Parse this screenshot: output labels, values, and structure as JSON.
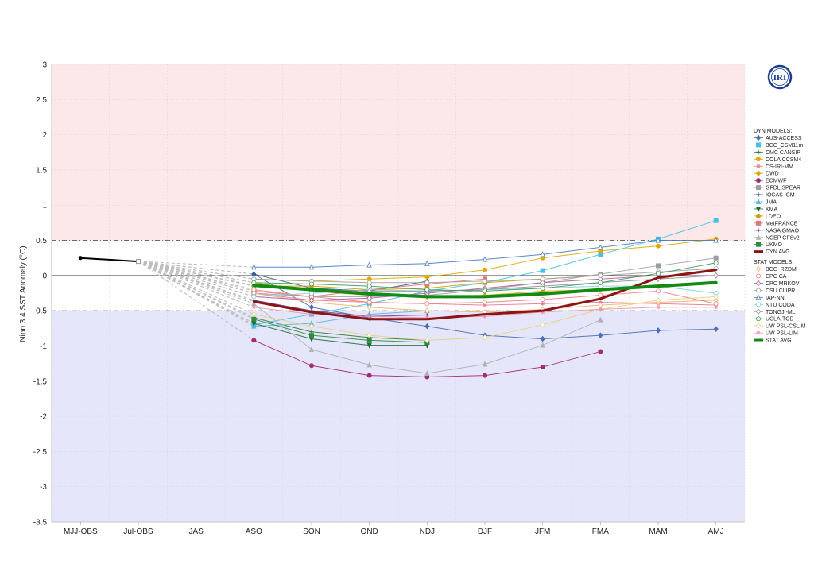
{
  "chart_data": {
    "type": "line",
    "title": "",
    "ylabel": "Nino 3.4 SST Anomaly (°C)",
    "xlabel": "",
    "categories": [
      "MJJ-OBS",
      "Jul-OBS",
      "JAS",
      "ASO",
      "SON",
      "OND",
      "NDJ",
      "DJF",
      "JFM",
      "FMA",
      "MAM",
      "AMJ"
    ],
    "ylim": [
      -3.5,
      3
    ],
    "yticks": [
      3,
      2.5,
      2,
      1.5,
      1,
      0.5,
      0,
      -0.5,
      -1,
      -1.5,
      -2,
      -2.5,
      -3,
      -3.5
    ],
    "ytick_labels": [
      "3",
      "2.5",
      "2",
      "1.5",
      "1",
      "0.5",
      "0",
      "-0.5",
      "-1",
      "-1.5",
      "-2",
      "-2.5",
      "-3",
      "-3.5"
    ],
    "grid": true,
    "bands": [
      {
        "from": 0.5,
        "to": 3,
        "color": "#fde8e9"
      },
      {
        "from": -3.5,
        "to": -0.5,
        "color": "#e6e6fb"
      }
    ],
    "threshold_lines": [
      0.5,
      -0.5
    ],
    "observed": {
      "x_index": [
        0,
        1
      ],
      "values": [
        0.25,
        0.2
      ],
      "color": "#000000"
    },
    "legend_position": "right",
    "dyn_header": "DYN MODELS:",
    "stat_header": "STAT MODELS:",
    "series": [
      {
        "name": "AUS-ACCESS",
        "group": "dyn",
        "color": "#4a6fb5",
        "marker": "diamond",
        "values": [
          null,
          null,
          null,
          0.02,
          -0.45,
          -0.6,
          -0.72,
          -0.85,
          -0.9,
          -0.85,
          -0.78,
          -0.76
        ]
      },
      {
        "name": "BCC_CSM11m",
        "group": "dyn",
        "color": "#46c1e6",
        "marker": "square",
        "values": [
          null,
          null,
          null,
          -0.7,
          -0.55,
          -0.4,
          -0.22,
          -0.1,
          0.07,
          0.3,
          0.52,
          0.78
        ]
      },
      {
        "name": "CMC CANSIP",
        "group": "dyn",
        "color": "#2e7d32",
        "marker": "plus",
        "values": [
          null,
          null,
          null,
          -0.6,
          -0.8,
          -0.88,
          -0.92,
          null,
          null,
          null,
          null,
          null
        ]
      },
      {
        "name": "COLA CCSM4",
        "group": "dyn",
        "color": "#e0a800",
        "marker": "circle",
        "values": [
          null,
          null,
          null,
          -0.05,
          -0.08,
          -0.05,
          -0.02,
          0.08,
          0.25,
          0.35,
          0.42,
          0.52
        ]
      },
      {
        "name": "CS-IRI-MM",
        "group": "dyn",
        "color": "#e8789a",
        "marker": "star",
        "values": [
          null,
          null,
          null,
          -0.25,
          -0.35,
          -0.38,
          -0.4,
          -0.42,
          -0.4,
          -0.38,
          -0.4,
          -0.42
        ]
      },
      {
        "name": "DWD",
        "group": "dyn",
        "color": "#d9a400",
        "marker": "diamond",
        "values": [
          null,
          null,
          null,
          -0.1,
          -0.22,
          -0.28,
          -0.3,
          -0.28,
          -0.22,
          -0.2,
          null,
          null
        ]
      },
      {
        "name": "ECMWF",
        "group": "dyn",
        "color": "#a32a74",
        "marker": "circle",
        "values": [
          null,
          null,
          null,
          -0.92,
          -1.28,
          -1.42,
          -1.44,
          -1.42,
          -1.3,
          -1.08,
          null,
          null
        ]
      },
      {
        "name": "GFDL SPEAR",
        "group": "dyn",
        "color": "#9e9e9e",
        "marker": "square",
        "values": [
          null,
          null,
          null,
          -0.25,
          -0.3,
          -0.3,
          -0.28,
          -0.2,
          -0.1,
          0.02,
          0.14,
          0.25
        ]
      },
      {
        "name": "IOCAS ICM",
        "group": "dyn",
        "color": "#2a5c8a",
        "marker": "plus",
        "values": [
          null,
          null,
          null,
          0.02,
          -0.18,
          -0.22,
          -0.08,
          null,
          null,
          null,
          null,
          null
        ]
      },
      {
        "name": "JMA",
        "group": "dyn",
        "color": "#5ab7d8",
        "marker": "triangle",
        "values": [
          null,
          null,
          null,
          -0.72,
          -0.68,
          -0.55,
          -0.5,
          null,
          null,
          null,
          null,
          null
        ]
      },
      {
        "name": "KMA",
        "group": "dyn",
        "color": "#1b6e3a",
        "marker": "triangle-down",
        "values": [
          null,
          null,
          null,
          -0.68,
          -0.9,
          -0.99,
          -0.99,
          null,
          null,
          null,
          null,
          null
        ]
      },
      {
        "name": "LDEO",
        "group": "dyn",
        "color": "#c9a100",
        "marker": "circle",
        "values": [
          null,
          null,
          null,
          -0.15,
          -0.15,
          -0.2,
          -0.18,
          -0.1,
          -0.05,
          0.0,
          null,
          null
        ]
      },
      {
        "name": "MetFRANCE",
        "group": "dyn",
        "color": "#e57373",
        "marker": "square",
        "values": [
          null,
          null,
          null,
          -0.22,
          -0.3,
          -0.2,
          -0.12,
          -0.05,
          null,
          null,
          null,
          null
        ]
      },
      {
        "name": "NASA GMAO",
        "group": "dyn",
        "color": "#6a3d9a",
        "marker": "plus",
        "values": [
          null,
          null,
          null,
          -0.35,
          -0.5,
          -0.58,
          -0.56,
          null,
          null,
          null,
          null,
          null
        ]
      },
      {
        "name": "NCEP CFSv2",
        "group": "dyn",
        "color": "#b0b0b0",
        "marker": "triangle",
        "values": [
          null,
          null,
          null,
          -0.4,
          -1.05,
          -1.27,
          -1.39,
          -1.26,
          -0.99,
          -0.63,
          null,
          null
        ]
      },
      {
        "name": "UKMO",
        "group": "dyn",
        "color": "#2e8b3a",
        "marker": "square",
        "values": [
          null,
          null,
          null,
          -0.62,
          -0.85,
          -0.92,
          -0.95,
          null,
          null,
          null,
          null,
          null
        ]
      },
      {
        "name": "DYN AVG",
        "group": "dyn",
        "color": "#8b1414",
        "marker": "none",
        "width": 3,
        "values": [
          null,
          null,
          null,
          -0.37,
          -0.52,
          -0.62,
          -0.62,
          -0.55,
          -0.5,
          -0.33,
          -0.03,
          0.08
        ]
      },
      {
        "name": "BCC_RZDM",
        "group": "stat",
        "color": "#f0b070",
        "marker": "diamond-open",
        "values": [
          null,
          null,
          null,
          -0.25,
          -0.38,
          -0.45,
          -0.5,
          -0.52,
          -0.48,
          -0.42,
          -0.38,
          -0.35
        ]
      },
      {
        "name": "CPC CA",
        "group": "stat",
        "color": "#f08080",
        "marker": "circle-open",
        "values": [
          null,
          null,
          null,
          -0.2,
          -0.3,
          -0.38,
          -0.4,
          -0.38,
          -0.34,
          -0.28,
          -0.22,
          -0.4
        ]
      },
      {
        "name": "CPC MRKOV",
        "group": "stat",
        "color": "#b05aa0",
        "marker": "diamond-open",
        "values": [
          null,
          null,
          null,
          -0.3,
          -0.35,
          -0.32,
          -0.25,
          -0.18,
          -0.1,
          -0.05,
          0.0,
          0.0
        ]
      },
      {
        "name": "CSU CLIPR",
        "group": "stat",
        "color": "#a0a0a0",
        "marker": "circle-open",
        "values": [
          null,
          null,
          null,
          -0.05,
          -0.08,
          -0.1,
          -0.1,
          -0.08,
          -0.05,
          0.0,
          0.05,
          0.1
        ]
      },
      {
        "name": "IAP-NN",
        "group": "stat",
        "color": "#4a7ac0",
        "marker": "triangle-open",
        "values": [
          null,
          null,
          null,
          0.12,
          0.12,
          0.15,
          0.17,
          0.23,
          0.3,
          0.4,
          0.5,
          0.5
        ]
      },
      {
        "name": "NTU CODA",
        "group": "stat",
        "color": "#80d0e0",
        "marker": "circle-open",
        "values": [
          null,
          null,
          null,
          -0.3,
          -0.25,
          -0.2,
          -0.22,
          -0.2,
          -0.18,
          -0.15,
          -0.15,
          -0.25
        ]
      },
      {
        "name": "TONGJI-ML",
        "group": "stat",
        "color": "#909090",
        "marker": "diamond-open",
        "values": [
          null,
          null,
          null,
          -0.15,
          -0.2,
          -0.22,
          -0.22,
          -0.2,
          -0.15,
          -0.1,
          -0.05,
          0.0
        ]
      },
      {
        "name": "UCLA-TCD",
        "group": "stat",
        "color": "#3d9a5a",
        "marker": "circle-open",
        "values": [
          null,
          null,
          null,
          -0.1,
          -0.12,
          -0.15,
          -0.2,
          -0.22,
          -0.18,
          -0.1,
          0.03,
          0.18
        ]
      },
      {
        "name": "UW PSL-CSLIM",
        "group": "stat",
        "color": "#e8d080",
        "marker": "diamond-open",
        "values": [
          null,
          null,
          null,
          -0.55,
          -0.72,
          -0.85,
          -0.92,
          -0.88,
          -0.7,
          -0.48,
          -0.35,
          -0.3
        ]
      },
      {
        "name": "UW PSL-LIM",
        "group": "stat",
        "color": "#f090b0",
        "marker": "star-open",
        "values": [
          null,
          null,
          null,
          -0.45,
          -0.55,
          -0.58,
          -0.6,
          -0.58,
          -0.52,
          -0.48,
          -0.45,
          -0.45
        ]
      },
      {
        "name": "STAT AVG",
        "group": "stat",
        "color": "#138a13",
        "marker": "none",
        "width": 4,
        "values": [
          null,
          null,
          null,
          -0.14,
          -0.2,
          -0.26,
          -0.3,
          -0.3,
          -0.26,
          -0.2,
          -0.15,
          -0.1
        ]
      }
    ]
  },
  "logo": {
    "text": "IRI"
  }
}
